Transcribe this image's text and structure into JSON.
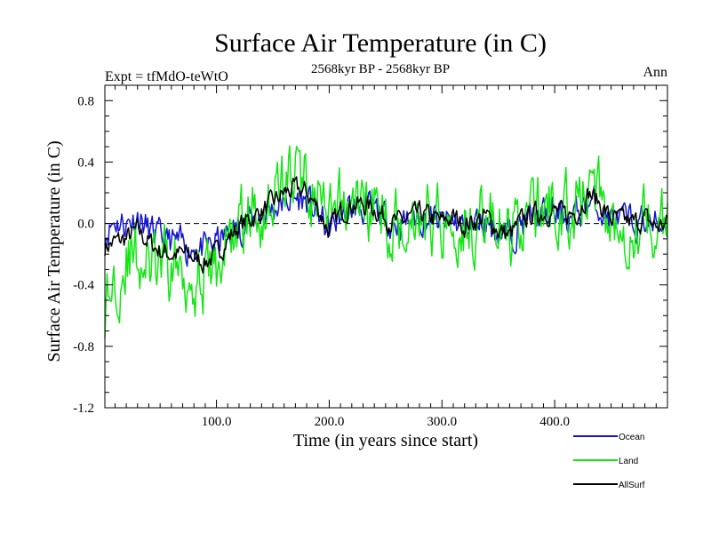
{
  "chart_data": {
    "type": "line",
    "title": "Surface Air Temperature (in C)",
    "subtitle": "2568kyr BP - 2568kyr BP",
    "left_label": "Expt = tfMdO-teWtO",
    "right_label": "Ann",
    "xlabel": "Time (in years since start)",
    "ylabel": "Surface Air Temperature (in C)",
    "xlim": [
      1,
      500
    ],
    "ylim": [
      -1.2,
      0.9
    ],
    "x_ticks": [
      100,
      200,
      300,
      400
    ],
    "x_tick_labels": [
      "100.0",
      "200.0",
      "300.0",
      "400.0"
    ],
    "y_ticks": [
      0.8,
      0.4,
      0.0,
      -0.4,
      -0.8,
      -1.2
    ],
    "y_tick_labels": [
      "0.8",
      "0.4",
      "0.0",
      "-0.4",
      "-0.8",
      "-1.2"
    ],
    "zero_line": 0.0,
    "legend_position": "bottom-right, outside plot",
    "series": [
      {
        "name": "Ocean",
        "color": "#1414d2",
        "anchors_x": [
          1,
          10,
          20,
          30,
          40,
          50,
          60,
          70,
          80,
          90,
          100,
          110,
          120,
          130,
          140,
          150,
          160,
          170,
          180,
          190,
          200,
          210,
          220,
          230,
          240,
          250,
          260,
          270,
          280,
          290,
          300,
          310,
          320,
          330,
          340,
          350,
          360,
          370,
          380,
          390,
          400,
          410,
          420,
          430,
          440,
          450,
          460,
          470,
          480,
          490,
          500
        ],
        "anchors_y": [
          -0.05,
          0.02,
          0.0,
          0.05,
          -0.05,
          -0.1,
          -0.12,
          -0.15,
          -0.15,
          -0.18,
          -0.12,
          -0.08,
          -0.02,
          0.02,
          0.06,
          0.1,
          0.15,
          0.16,
          0.15,
          0.06,
          -0.05,
          0.05,
          0.1,
          0.1,
          0.08,
          0.03,
          0.0,
          0.02,
          0.04,
          0.03,
          0.0,
          0.02,
          -0.02,
          0.0,
          0.02,
          -0.05,
          -0.08,
          0.0,
          0.04,
          0.05,
          0.06,
          0.04,
          0.06,
          0.14,
          0.1,
          0.03,
          0.01,
          0.0,
          0.02,
          -0.02,
          0.0
        ],
        "noise_amplitude": 0.09,
        "noise_seed": 11
      },
      {
        "name": "Land",
        "color": "#14e614",
        "anchors_x": [
          1,
          10,
          20,
          30,
          40,
          50,
          60,
          70,
          80,
          90,
          100,
          110,
          120,
          130,
          140,
          150,
          160,
          170,
          180,
          190,
          200,
          210,
          220,
          230,
          240,
          250,
          260,
          270,
          280,
          290,
          300,
          310,
          320,
          330,
          340,
          350,
          360,
          370,
          380,
          390,
          400,
          410,
          420,
          430,
          440,
          450,
          460,
          470,
          480,
          490,
          500
        ],
        "anchors_y": [
          -0.55,
          -0.35,
          -0.22,
          -0.2,
          -0.3,
          -0.32,
          -0.28,
          -0.3,
          -0.32,
          -0.35,
          -0.3,
          -0.12,
          0.0,
          0.05,
          0.1,
          0.18,
          0.3,
          0.33,
          0.3,
          0.15,
          -0.05,
          0.08,
          0.15,
          0.13,
          0.1,
          0.04,
          0.0,
          0.05,
          0.08,
          0.05,
          0.02,
          0.05,
          0.0,
          0.03,
          0.05,
          -0.04,
          -0.08,
          0.02,
          0.08,
          0.09,
          0.1,
          0.06,
          0.1,
          0.26,
          0.16,
          0.04,
          0.02,
          0.0,
          0.04,
          -0.02,
          0.0
        ],
        "noise_amplitude": 0.2,
        "noise_seed": 29
      },
      {
        "name": "AllSurf",
        "color": "#000000",
        "anchors_x": [
          1,
          10,
          20,
          30,
          40,
          50,
          60,
          70,
          80,
          90,
          100,
          110,
          120,
          130,
          140,
          150,
          160,
          170,
          180,
          190,
          200,
          210,
          220,
          230,
          240,
          250,
          260,
          270,
          280,
          290,
          300,
          310,
          320,
          330,
          340,
          350,
          360,
          370,
          380,
          390,
          400,
          410,
          420,
          430,
          440,
          450,
          460,
          470,
          480,
          490,
          500
        ],
        "anchors_y": [
          -0.15,
          -0.12,
          -0.1,
          -0.05,
          -0.12,
          -0.18,
          -0.2,
          -0.2,
          -0.22,
          -0.25,
          -0.2,
          -0.1,
          -0.02,
          0.03,
          0.08,
          0.13,
          0.2,
          0.22,
          0.2,
          0.1,
          -0.05,
          0.07,
          0.13,
          0.12,
          0.1,
          0.04,
          0.0,
          0.03,
          0.06,
          0.04,
          0.01,
          0.04,
          -0.01,
          0.02,
          0.04,
          -0.04,
          -0.08,
          0.01,
          0.06,
          0.07,
          0.08,
          0.05,
          0.08,
          0.2,
          0.13,
          0.03,
          0.02,
          0.0,
          0.03,
          -0.02,
          0.0
        ],
        "noise_amplitude": 0.06,
        "noise_seed": 7
      }
    ]
  }
}
